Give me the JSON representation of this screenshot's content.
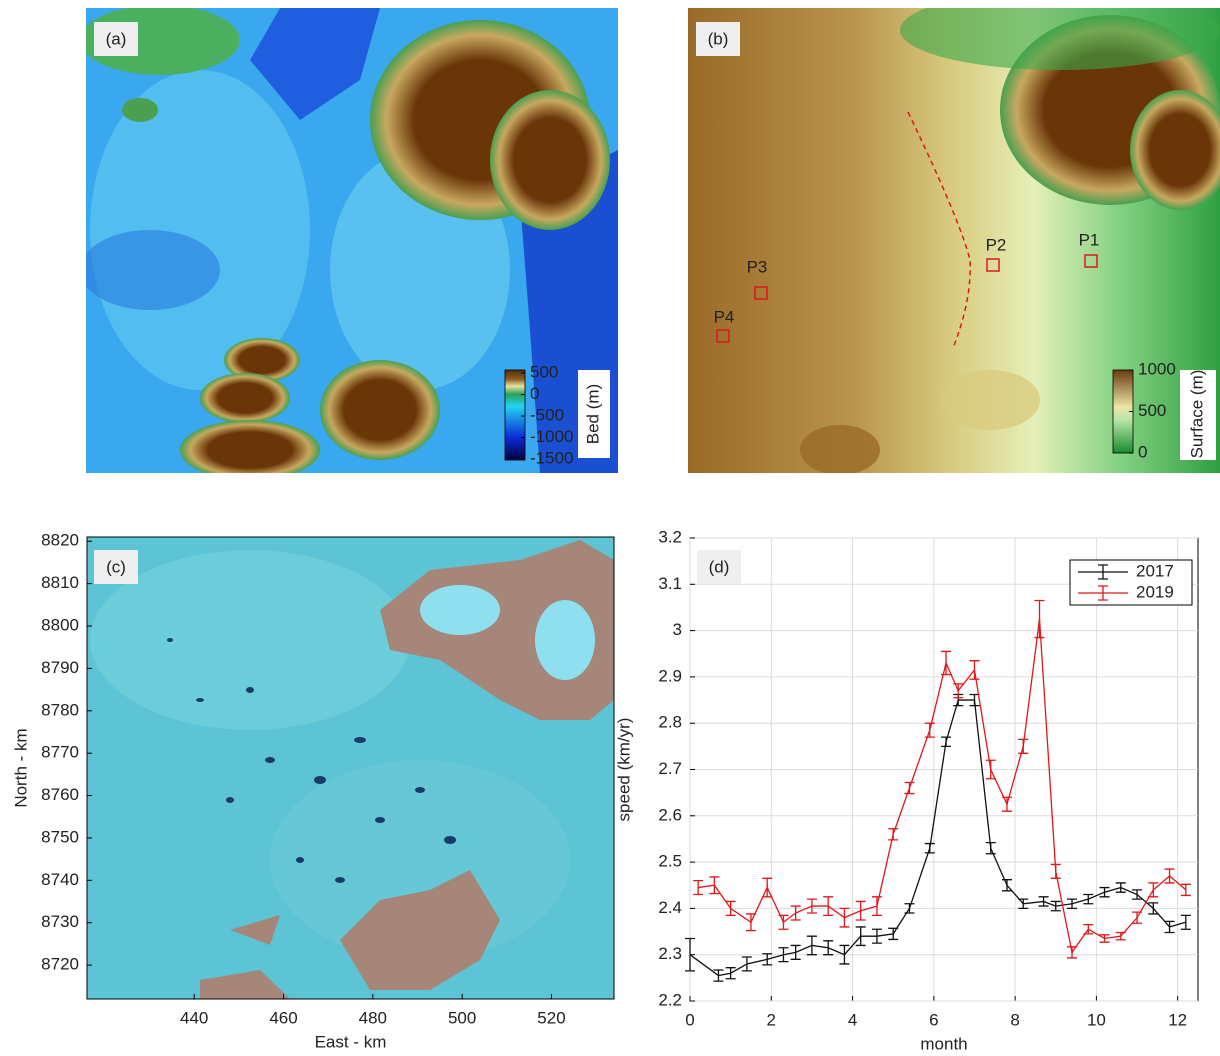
{
  "chart_data": [
    {
      "type": "map",
      "panel_label": "(a)",
      "colorbar": {
        "label": "Bed (m)",
        "lim": [
          -1520,
          570
        ],
        "ticks": [
          500,
          0,
          -500,
          -1000,
          -1500
        ]
      }
    },
    {
      "type": "map",
      "panel_label": "(b)",
      "colorbar": {
        "label": "Surface (m)",
        "lim": [
          0,
          1000
        ],
        "ticks": [
          1000,
          500,
          0
        ]
      },
      "points": [
        "P1",
        "P2",
        "P3",
        "P4"
      ]
    },
    {
      "type": "image",
      "panel_label": "(c)",
      "xlabel": "East - km",
      "ylabel": "North - km",
      "xlim": [
        416,
        534
      ],
      "ylim": [
        8712,
        8821
      ],
      "xticks": [
        440,
        460,
        480,
        500,
        520
      ],
      "yticks": [
        8720,
        8730,
        8740,
        8750,
        8760,
        8770,
        8780,
        8790,
        8800,
        8810,
        8820
      ]
    },
    {
      "type": "line",
      "panel_label": "(d)",
      "xlabel": "month",
      "ylabel": "speed (km/yr)",
      "xlim": [
        0,
        12.5
      ],
      "ylim": [
        2.2,
        3.2
      ],
      "xticks": [
        0,
        2,
        4,
        6,
        8,
        10,
        12
      ],
      "yticks": [
        2.2,
        2.3,
        2.4,
        2.5,
        2.6,
        2.7,
        2.8,
        2.9,
        3,
        3.1,
        3.2
      ],
      "grid": true,
      "legend": "top-right",
      "series": [
        {
          "name": "2017",
          "color": "#111111",
          "x": [
            0,
            0.7,
            1.0,
            1.4,
            1.9,
            2.3,
            2.6,
            3.0,
            3.4,
            3.8,
            4.2,
            4.6,
            5.0,
            5.4,
            5.9,
            6.3,
            6.6,
            7.0,
            7.4,
            7.8,
            8.2,
            8.7,
            9.0,
            9.4,
            9.8,
            10.2,
            10.6,
            11.0,
            11.4,
            11.8,
            12.2
          ],
          "values": [
            2.3,
            2.255,
            2.26,
            2.28,
            2.29,
            2.3,
            2.305,
            2.32,
            2.315,
            2.3,
            2.34,
            2.34,
            2.345,
            2.4,
            2.53,
            2.76,
            2.85,
            2.85,
            2.53,
            2.45,
            2.41,
            2.415,
            2.405,
            2.41,
            2.42,
            2.435,
            2.445,
            2.43,
            2.4,
            2.36,
            2.37
          ],
          "errors": [
            0.035,
            0.012,
            0.012,
            0.015,
            0.012,
            0.015,
            0.015,
            0.02,
            0.015,
            0.02,
            0.02,
            0.015,
            0.012,
            0.01,
            0.01,
            0.01,
            0.012,
            0.012,
            0.012,
            0.012,
            0.01,
            0.01,
            0.01,
            0.01,
            0.01,
            0.01,
            0.01,
            0.01,
            0.012,
            0.012,
            0.015
          ]
        },
        {
          "name": "2019",
          "color": "#e0161b",
          "x": [
            0.2,
            0.6,
            1.0,
            1.5,
            1.9,
            2.3,
            2.6,
            3.0,
            3.4,
            3.8,
            4.2,
            4.6,
            5.0,
            5.4,
            5.9,
            6.3,
            6.6,
            7.0,
            7.4,
            7.8,
            8.2,
            8.6,
            9.0,
            9.4,
            9.8,
            10.2,
            10.6,
            11.0,
            11.4,
            11.8,
            12.2
          ],
          "values": [
            2.445,
            2.45,
            2.4,
            2.37,
            2.445,
            2.37,
            2.39,
            2.405,
            2.405,
            2.38,
            2.395,
            2.405,
            2.56,
            2.66,
            2.785,
            2.93,
            2.87,
            2.915,
            2.7,
            2.625,
            2.75,
            3.025,
            2.48,
            2.305,
            2.355,
            2.335,
            2.34,
            2.38,
            2.44,
            2.47,
            2.44
          ],
          "errors": [
            0.015,
            0.018,
            0.015,
            0.018,
            0.02,
            0.015,
            0.015,
            0.015,
            0.02,
            0.02,
            0.02,
            0.02,
            0.012,
            0.012,
            0.015,
            0.025,
            0.015,
            0.02,
            0.02,
            0.015,
            0.015,
            0.04,
            0.015,
            0.012,
            0.01,
            0.008,
            0.008,
            0.012,
            0.015,
            0.015,
            0.012
          ]
        }
      ]
    }
  ]
}
